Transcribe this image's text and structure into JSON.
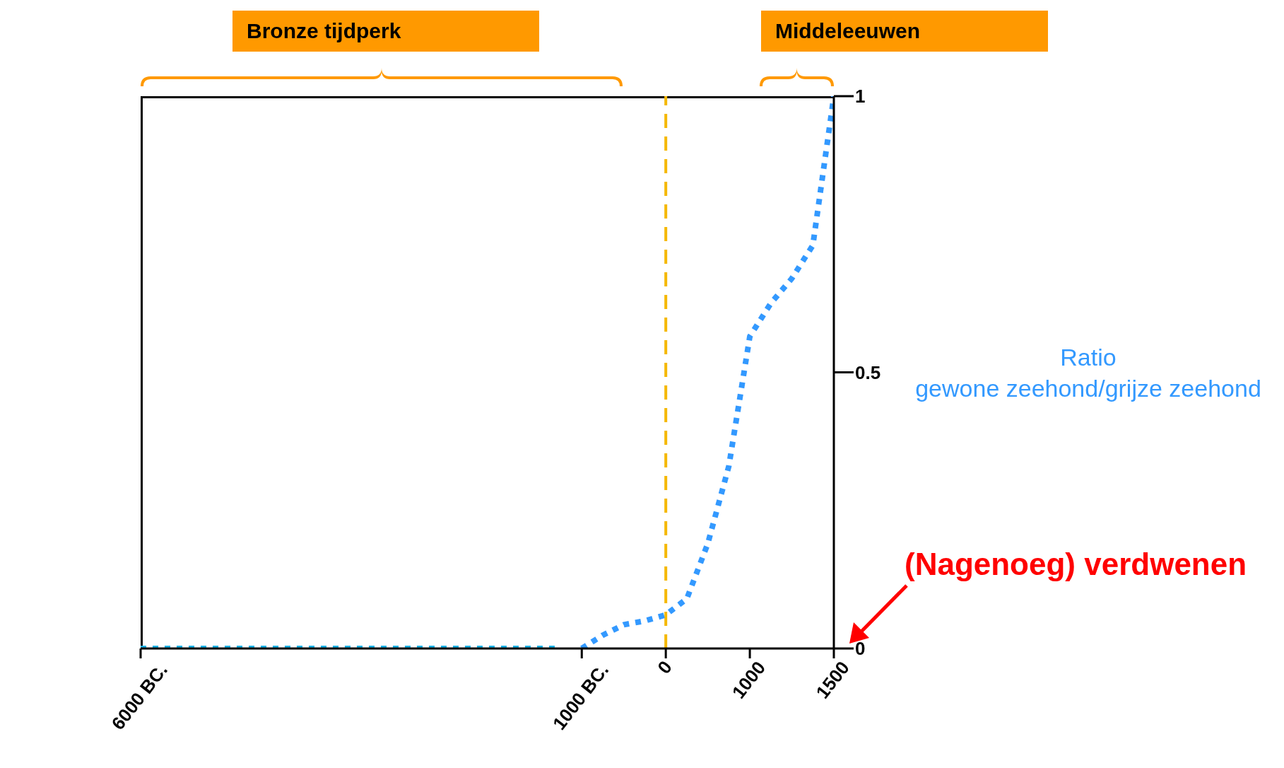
{
  "chart_data": {
    "type": "line",
    "ylabel": "Ratio\ngewone zeehond/grijze zeehond",
    "categories": [
      "6000 BC.",
      null,
      null,
      null,
      null,
      null,
      null,
      null,
      null,
      null,
      null,
      null,
      null,
      null,
      null,
      null,
      null,
      null,
      null,
      null,
      null,
      "1000 BC.",
      null,
      null,
      null,
      "0",
      null,
      null,
      null,
      "1000",
      null,
      null,
      null,
      "1500"
    ],
    "series": [
      {
        "color": "#1ab2e6",
        "values": [
          0,
          0,
          0,
          0,
          0,
          0,
          0,
          0,
          0,
          0,
          0,
          0,
          0,
          0,
          0,
          0,
          0,
          0,
          0,
          0,
          0,
          null,
          null,
          null,
          null,
          null,
          null,
          null,
          null,
          null,
          null,
          null,
          null,
          null
        ]
      },
      {
        "color": "#3399ff",
        "values": [
          null,
          null,
          null,
          null,
          null,
          null,
          null,
          null,
          null,
          null,
          null,
          null,
          null,
          null,
          null,
          null,
          null,
          null,
          null,
          null,
          null,
          0,
          0.024,
          0.043,
          0.05,
          0.061,
          0.09,
          0.19,
          0.33,
          0.565,
          0.625,
          0.67,
          0.73,
          1
        ]
      }
    ],
    "ylim": [
      0,
      1
    ],
    "yticks": [
      0,
      0.5,
      1
    ],
    "grid": false,
    "marker": "none",
    "line_style": "dotted",
    "ref_lines": [
      {
        "axis": "x",
        "value": "0",
        "color": "#f5b800",
        "line_style": "dashed"
      }
    ],
    "annotations": [
      "Bronze tijdperk",
      "Middeleeuwen",
      "(Nagenoeg) verdwenen"
    ]
  }
}
